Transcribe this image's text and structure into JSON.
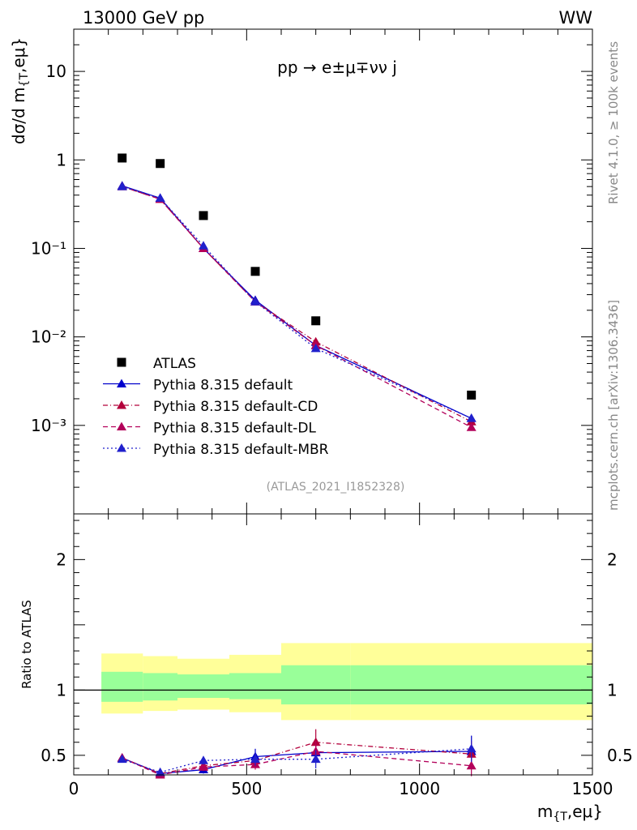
{
  "header": {
    "left": "13000 GeV pp",
    "right": "WW"
  },
  "side_labels": {
    "rivet": "Rivet 4.1.0, ≥ 100k events",
    "mcplots": "mcplots.cern.ch [arXiv:1306.3436]"
  },
  "chart_data": {
    "type": "scatter",
    "process_label": "pp → e±μ∓νν j",
    "analysis_label": "(ATLAS_2021_I1852328)",
    "main": {
      "ylabel": "dσ/d m_{T,eμ}",
      "yscale": "log",
      "ylim": [
        0.0001,
        30
      ],
      "yticks": [
        {
          "value": 10,
          "label": "10"
        },
        {
          "value": 1,
          "label": "1"
        },
        {
          "value": 0.1,
          "label": "10⁻¹"
        },
        {
          "value": 0.01,
          "label": "10⁻²"
        },
        {
          "value": 0.001,
          "label": "10⁻³"
        }
      ]
    },
    "ratio": {
      "ylabel": "Ratio to ATLAS",
      "ylim": [
        0.35,
        2.35
      ],
      "yticks": [
        {
          "value": 0.5,
          "label": "0.5"
        },
        {
          "value": 1,
          "label": "1"
        },
        {
          "value": 2,
          "label": "2"
        }
      ]
    },
    "x": {
      "label": "m_{T,eμ}",
      "xlim": [
        0,
        1500
      ],
      "ticks": [
        {
          "value": 0,
          "label": "0"
        },
        {
          "value": 500,
          "label": "500"
        },
        {
          "value": 1000,
          "label": "1000"
        },
        {
          "value": 1500,
          "label": "1500"
        }
      ]
    },
    "bins": [
      {
        "lo": 80,
        "hi": 200,
        "x": 140
      },
      {
        "lo": 200,
        "hi": 300,
        "x": 250
      },
      {
        "lo": 300,
        "hi": 450,
        "x": 375
      },
      {
        "lo": 450,
        "hi": 600,
        "x": 525
      },
      {
        "lo": 600,
        "hi": 800,
        "x": 700
      },
      {
        "lo": 800,
        "hi": 1500,
        "x": 1150
      }
    ],
    "data": {
      "name": "ATLAS",
      "values": [
        1.05,
        0.91,
        0.235,
        0.055,
        0.0152,
        0.0022
      ],
      "band_inner": [
        [
          0.91,
          1.14
        ],
        [
          0.92,
          1.13
        ],
        [
          0.94,
          1.12
        ],
        [
          0.93,
          1.13
        ],
        [
          0.89,
          1.19
        ],
        [
          0.89,
          1.19
        ]
      ],
      "band_outer": [
        [
          0.82,
          1.28
        ],
        [
          0.84,
          1.26
        ],
        [
          0.85,
          1.24
        ],
        [
          0.83,
          1.27
        ],
        [
          0.77,
          1.36
        ],
        [
          0.77,
          1.36
        ]
      ]
    },
    "series": [
      {
        "name": "Pythia 8.315 default",
        "color": "#0000cc",
        "dash": "",
        "values": [
          0.51,
          0.37,
          0.1,
          0.026,
          0.008,
          0.0012
        ],
        "ratio": [
          0.48,
          0.36,
          0.39,
          0.49,
          0.52,
          0.53
        ],
        "ratio_err": [
          0.01,
          0.02,
          0.03,
          0.06,
          0.07,
          0.12
        ]
      },
      {
        "name": "Pythia 8.315 default-CD",
        "color": "#b3003b",
        "dash": "6,3,1,3",
        "values": [
          0.5,
          0.36,
          0.1,
          0.025,
          0.0088,
          0.0011
        ],
        "ratio": [
          0.48,
          0.36,
          0.42,
          0.46,
          0.6,
          0.51
        ],
        "ratio_err": [
          0.01,
          0.02,
          0.03,
          0.05,
          0.1,
          0.1
        ]
      },
      {
        "name": "Pythia 8.315 default-DL",
        "color": "#b3005a",
        "dash": "6,4",
        "values": [
          0.5,
          0.36,
          0.1,
          0.025,
          0.008,
          0.00095
        ],
        "ratio": [
          0.48,
          0.35,
          0.41,
          0.43,
          0.53,
          0.42
        ],
        "ratio_err": [
          0.01,
          0.02,
          0.03,
          0.04,
          0.08,
          0.08
        ]
      },
      {
        "name": "Pythia 8.315 default-MBR",
        "color": "#2020cc",
        "dash": "2,3",
        "values": [
          0.5,
          0.37,
          0.107,
          0.025,
          0.0074,
          0.0012
        ],
        "ratio": [
          0.47,
          0.37,
          0.46,
          0.47,
          0.47,
          0.55
        ],
        "ratio_err": [
          0.01,
          0.02,
          0.03,
          0.05,
          0.07,
          0.1
        ]
      }
    ]
  }
}
